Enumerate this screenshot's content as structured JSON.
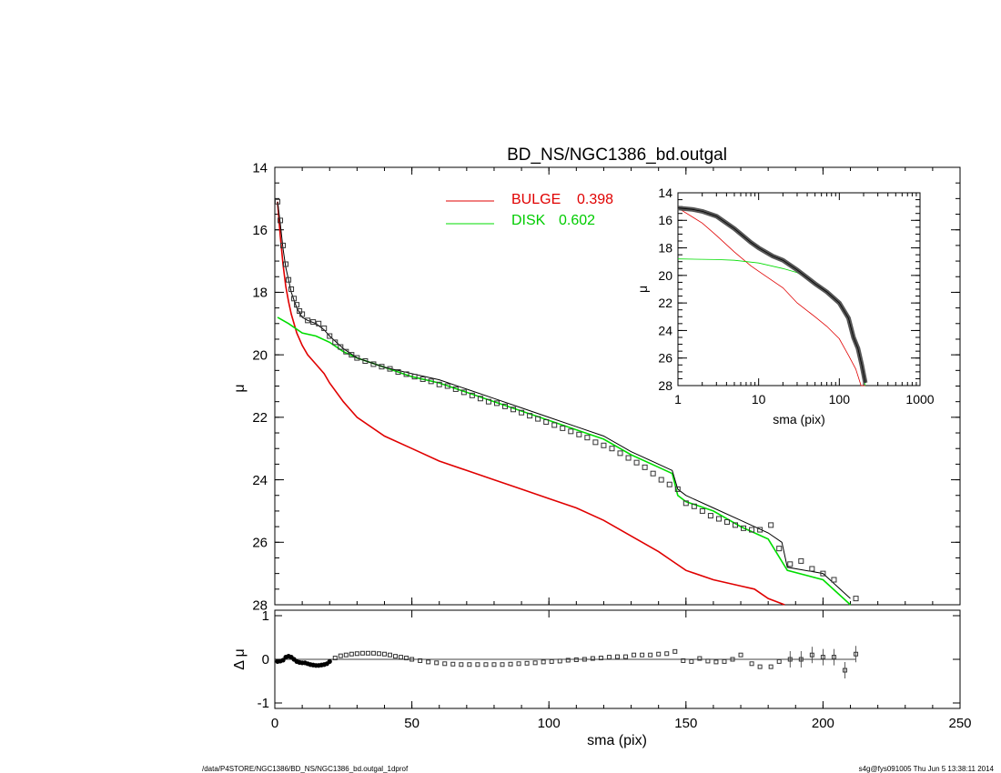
{
  "footer": {
    "left": "/data/P4STORE/NGC1386/BD_NS/NGC1386_bd.outgal_1dprof",
    "right": "s4g@fys091005  Thu Jun  5 13:38:11 2014"
  },
  "colors": {
    "bulge": "#e00000",
    "disk": "#00dd00",
    "data": "#333333",
    "model": "#000000"
  },
  "chart_data": [
    {
      "type": "line",
      "title": "BD_NS/NGC1386_bd.outgal",
      "xlabel": "",
      "ylabel": "μ",
      "xlim": [
        0,
        250
      ],
      "ylim": [
        28,
        14
      ],
      "y_inverted": true,
      "xticks": [
        0,
        50,
        100,
        150,
        200,
        250
      ],
      "yticks": [
        14,
        16,
        18,
        20,
        22,
        24,
        26,
        28
      ],
      "legend": [
        {
          "name": "BULGE",
          "value": "0.398",
          "color": "#e00000"
        },
        {
          "name": "DISK",
          "value": "0.602",
          "color": "#00dd00"
        }
      ],
      "series": [
        {
          "name": "BULGE",
          "x": [
            1,
            2,
            3,
            4,
            5,
            6,
            8,
            10,
            12,
            15,
            18,
            20,
            25,
            30,
            40,
            50,
            60,
            70,
            80,
            90,
            100,
            110,
            120,
            130,
            140,
            145,
            150,
            160,
            170,
            175,
            180,
            186
          ],
          "y": [
            15.1,
            16.2,
            17.1,
            17.8,
            18.3,
            18.7,
            19.3,
            19.7,
            20.0,
            20.3,
            20.6,
            20.9,
            21.5,
            22.0,
            22.6,
            23.0,
            23.4,
            23.7,
            24.0,
            24.3,
            24.6,
            24.9,
            25.3,
            25.8,
            26.3,
            26.6,
            26.9,
            27.2,
            27.4,
            27.5,
            27.8,
            28.0
          ]
        },
        {
          "name": "DISK",
          "x": [
            1,
            5,
            10,
            15,
            20,
            25,
            30,
            40,
            50,
            60,
            70,
            80,
            90,
            100,
            110,
            120,
            130,
            140,
            145,
            147,
            150,
            160,
            170,
            180,
            187,
            200,
            210
          ],
          "y": [
            18.8,
            19.0,
            19.3,
            19.4,
            19.6,
            19.9,
            20.1,
            20.4,
            20.7,
            20.9,
            21.2,
            21.5,
            21.8,
            22.1,
            22.4,
            22.7,
            23.2,
            23.6,
            23.8,
            24.5,
            24.7,
            25.0,
            25.5,
            25.9,
            26.9,
            27.2,
            28.0
          ]
        },
        {
          "name": "model",
          "x": [
            1,
            2,
            3,
            4,
            5,
            6,
            8,
            10,
            12,
            15,
            18,
            20,
            25,
            30,
            40,
            50,
            60,
            70,
            80,
            90,
            100,
            110,
            120,
            130,
            140,
            145,
            147,
            150,
            160,
            170,
            180,
            185,
            187,
            200,
            210
          ],
          "y": [
            15.1,
            15.8,
            16.6,
            17.2,
            17.6,
            18.0,
            18.5,
            18.8,
            18.9,
            19.0,
            19.2,
            19.4,
            19.8,
            20.1,
            20.4,
            20.6,
            20.8,
            21.1,
            21.4,
            21.7,
            22.0,
            22.3,
            22.6,
            23.1,
            23.5,
            23.7,
            24.3,
            24.5,
            24.9,
            25.3,
            25.7,
            26.0,
            26.8,
            27.0,
            27.8
          ]
        },
        {
          "name": "data",
          "x": [
            1,
            2,
            3,
            4,
            5,
            6,
            7,
            8,
            9,
            10,
            12,
            14,
            16,
            18,
            20,
            22,
            24,
            26,
            28,
            30,
            33,
            36,
            39,
            42,
            45,
            48,
            51,
            54,
            57,
            60,
            63,
            66,
            69,
            72,
            75,
            78,
            81,
            84,
            87,
            90,
            93,
            96,
            99,
            102,
            105,
            108,
            111,
            114,
            117,
            120,
            123,
            126,
            129,
            132,
            135,
            138,
            141,
            144,
            147,
            150,
            153,
            156,
            159,
            162,
            165,
            168,
            171,
            174,
            177,
            181,
            184,
            188,
            192,
            196,
            200,
            204,
            212
          ],
          "y": [
            15.1,
            15.7,
            16.5,
            17.1,
            17.6,
            17.9,
            18.2,
            18.4,
            18.6,
            18.7,
            18.9,
            18.95,
            19.0,
            19.15,
            19.4,
            19.6,
            19.75,
            19.9,
            20.0,
            20.1,
            20.2,
            20.3,
            20.38,
            20.45,
            20.55,
            20.62,
            20.7,
            20.78,
            20.85,
            20.95,
            21.0,
            21.1,
            21.2,
            21.3,
            21.4,
            21.5,
            21.55,
            21.65,
            21.75,
            21.85,
            21.95,
            22.05,
            22.15,
            22.25,
            22.35,
            22.45,
            22.55,
            22.65,
            22.8,
            22.9,
            23.0,
            23.15,
            23.3,
            23.45,
            23.6,
            23.8,
            24.0,
            24.15,
            24.3,
            24.75,
            24.85,
            25.0,
            25.15,
            25.25,
            25.35,
            25.45,
            25.55,
            25.6,
            25.6,
            25.45,
            26.2,
            26.7,
            26.6,
            26.85,
            27.0,
            27.2,
            27.8
          ]
        }
      ]
    },
    {
      "type": "scatter",
      "title": "",
      "xlabel": "sma (pix)",
      "ylabel": "Δ μ",
      "xlim": [
        0,
        250
      ],
      "ylim": [
        -1,
        1
      ],
      "xticks": [
        0,
        50,
        100,
        150,
        200,
        250
      ],
      "yticks": [
        -1,
        0,
        1
      ],
      "series": [
        {
          "name": "residual",
          "x": [
            1,
            2,
            3,
            4,
            5,
            6,
            7,
            8,
            9,
            10,
            11,
            12,
            13,
            14,
            15,
            16,
            17,
            18,
            19,
            20,
            22,
            24,
            26,
            28,
            30,
            32,
            34,
            36,
            38,
            40,
            42,
            44,
            46,
            48,
            50,
            53,
            56,
            59,
            62,
            65,
            68,
            71,
            74,
            77,
            80,
            83,
            86,
            89,
            92,
            95,
            98,
            101,
            104,
            107,
            110,
            113,
            116,
            119,
            122,
            125,
            128,
            131,
            134,
            137,
            140,
            143,
            146,
            149,
            152,
            155,
            158,
            161,
            164,
            167,
            170,
            174,
            177,
            181,
            184,
            188,
            192,
            196,
            200,
            204,
            208,
            212
          ],
          "y": [
            -0.05,
            -0.04,
            -0.02,
            0.05,
            0.07,
            0.05,
            0.0,
            -0.05,
            -0.07,
            -0.08,
            -0.08,
            -0.1,
            -0.12,
            -0.13,
            -0.14,
            -0.14,
            -0.13,
            -0.12,
            -0.1,
            -0.05,
            0.03,
            0.08,
            0.1,
            0.12,
            0.13,
            0.14,
            0.14,
            0.14,
            0.13,
            0.12,
            0.1,
            0.07,
            0.05,
            0.03,
            0.0,
            -0.03,
            -0.06,
            -0.08,
            -0.1,
            -0.11,
            -0.12,
            -0.12,
            -0.12,
            -0.12,
            -0.12,
            -0.12,
            -0.11,
            -0.1,
            -0.09,
            -0.08,
            -0.06,
            -0.05,
            -0.04,
            -0.02,
            -0.01,
            0.0,
            0.02,
            0.03,
            0.05,
            0.06,
            0.06,
            0.1,
            0.1,
            0.1,
            0.12,
            0.13,
            0.18,
            -0.03,
            -0.05,
            0.02,
            -0.04,
            -0.06,
            -0.05,
            0.0,
            0.1,
            -0.1,
            -0.17,
            -0.17,
            -0.05,
            0.0,
            0.0,
            0.1,
            0.05,
            0.05,
            -0.25,
            0.12
          ]
        }
      ]
    },
    {
      "type": "line",
      "title": "",
      "xlabel": "sma (pix)",
      "ylabel": "μ",
      "x_scale": "log",
      "xlim": [
        1,
        1000
      ],
      "ylim": [
        28,
        14
      ],
      "xticks": [
        1,
        10,
        100,
        1000
      ],
      "yticks": [
        14,
        16,
        18,
        20,
        22,
        24,
        26,
        28
      ],
      "series": [
        {
          "name": "BULGE",
          "x": [
            1,
            2,
            3,
            5,
            8,
            10,
            20,
            30,
            50,
            70,
            100,
            130,
            160,
            186,
            210
          ],
          "y": [
            15.1,
            16.2,
            17.1,
            18.3,
            19.3,
            19.7,
            20.9,
            22.0,
            23.0,
            23.7,
            24.6,
            25.8,
            26.8,
            28.0,
            28.0
          ]
        },
        {
          "name": "DISK",
          "x": [
            1,
            3,
            5,
            10,
            20,
            30,
            50,
            70,
            100,
            130,
            150,
            170,
            190,
            210
          ],
          "y": [
            18.8,
            18.85,
            18.9,
            19.1,
            19.5,
            19.8,
            20.6,
            21.3,
            22.1,
            23.2,
            24.5,
            25.5,
            26.8,
            28.0
          ]
        },
        {
          "name": "model",
          "x": [
            1,
            1.5,
            2,
            3,
            5,
            8,
            10,
            15,
            20,
            30,
            50,
            70,
            100,
            130,
            150,
            170,
            190,
            210
          ],
          "y": [
            15.1,
            15.2,
            15.35,
            15.7,
            16.6,
            17.6,
            18.0,
            18.6,
            18.9,
            19.6,
            20.6,
            21.2,
            22.0,
            23.1,
            24.5,
            25.3,
            26.5,
            27.8
          ]
        }
      ]
    }
  ]
}
